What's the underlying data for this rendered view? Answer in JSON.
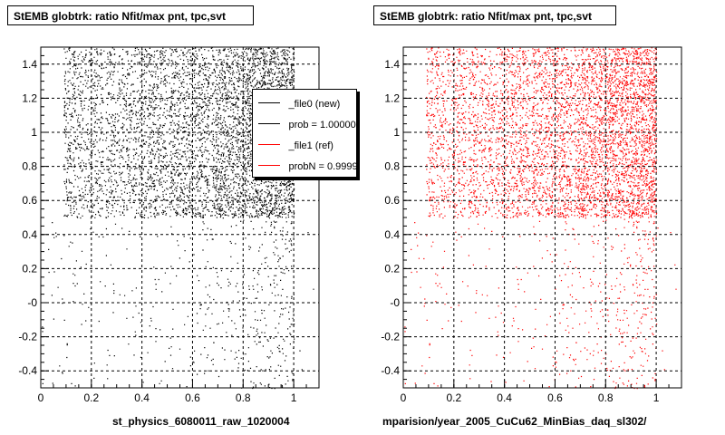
{
  "panels": [
    {
      "title": "StEMB globtrk: ratio Nfit/max pnt, tpc,svt",
      "footer": "st_physics_6080011_raw_1020004",
      "color": "#000000"
    },
    {
      "title": "StEMB globtrk: ratio Nfit/max pnt, tpc,svt",
      "footer": "mparision/year_2005_CuCu62_MinBias_daq_sl302/",
      "color": "#ff0000"
    }
  ],
  "legend": {
    "entries": [
      {
        "label": "_file0 (new)",
        "color": "#000000"
      },
      {
        "label": "prob = 1.000000",
        "color": "#000000"
      },
      {
        "label": "_file1 (ref)",
        "color": "#ff0000"
      },
      {
        "label": "probN = 0.999977",
        "color": "#ff0000"
      }
    ]
  },
  "chart_data": [
    {
      "type": "scatter",
      "title": "StEMB globtrk: ratio Nfit/max pnt, tpc,svt",
      "xlabel": "",
      "ylabel": "",
      "xlim": [
        0,
        1.1
      ],
      "ylim": [
        -0.5,
        1.5
      ],
      "xticks": [
        "0",
        "0.2",
        "0.4",
        "0.6",
        "0.8",
        "1"
      ],
      "yticks": [
        "-0.4",
        "-0.2",
        "-0",
        "0.2",
        "0.4",
        "0.6",
        "0.8",
        "1",
        "1.2",
        "1.4"
      ],
      "grid": true,
      "series": [
        {
          "name": "_file0 (new)",
          "color": "#000000"
        }
      ]
    },
    {
      "type": "scatter",
      "title": "StEMB globtrk: ratio Nfit/max pnt, tpc,svt",
      "xlabel": "",
      "ylabel": "",
      "xlim": [
        0,
        1.1
      ],
      "ylim": [
        -0.5,
        1.5
      ],
      "xticks": [
        "0",
        "0.2",
        "0.4",
        "0.6",
        "0.8",
        "1"
      ],
      "yticks": [
        "-0.4",
        "-0.2",
        "-0",
        "0.2",
        "0.4",
        "0.6",
        "0.8",
        "1",
        "1.2",
        "1.4"
      ],
      "grid": true,
      "series": [
        {
          "name": "_file1 (ref)",
          "color": "#ff0000"
        }
      ]
    }
  ]
}
